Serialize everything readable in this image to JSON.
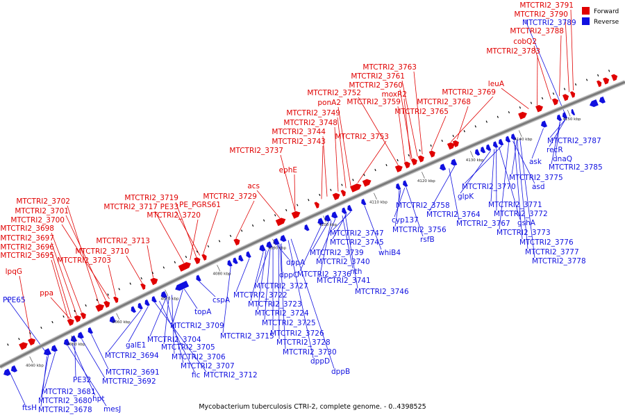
{
  "caption": "Mycobacterium tuberculosis CTRI-2, complete genome. - 0..4398525",
  "legend": {
    "forward": "Forward",
    "reverse": "Reverse"
  },
  "colors": {
    "forward": "#e00000",
    "reverse": "#1010e0",
    "backbone": "#7a7a7a"
  },
  "ticks": [
    "4040 kbp",
    "4050 kbp",
    "4060 kbp",
    "4070 kbp",
    "4080 kbp",
    "4090 kbp",
    "4100 kbp",
    "4110 kbp",
    "4120 kbp",
    "4130 kbp",
    "4140 kbp",
    "4150 kbp"
  ],
  "forward_labels": [
    "MTCTRI2_3791",
    "MTCTRI2_3790",
    "MTCTRI2_3788",
    "cobQ2",
    "MTCTRI2_3783",
    "leuA",
    "MTCTRI2_3763",
    "MTCTRI2_3761",
    "MTCTRI2_3760",
    "moxR2",
    "MTCTRI2_3752",
    "MTCTRI2_3759",
    "MTCTRI2_3769",
    "ponA2",
    "MTCTRI2_3768",
    "MTCTRI2_3765",
    "MTCTRI2_3749",
    "MTCTRI2_3748",
    "MTCTRI2_3744",
    "MTCTRI2_3753",
    "MTCTRI2_3743",
    "MTCTRI2_3737",
    "ephE",
    "acs",
    "MTCTRI2_3729",
    "MTCTRI2_3719",
    "MTCTRI2_3717",
    "PE33",
    "PE_PGRS61",
    "MTCTRI2_3720",
    "MTCTRI2_3702",
    "MTCTRI2_3701",
    "MTCTRI2_3700",
    "MTCTRI2_3698",
    "MTCTRI2_3713",
    "MTCTRI2_3697",
    "MTCTRI2_3696",
    "MTCTRI2_3710",
    "MTCTRI2_3695",
    "MTCTRI2_3703",
    "lpqG",
    "ppa"
  ],
  "reverse_labels": [
    "MTCTRI2_3789",
    "MTCTRI2_3787",
    "recR",
    "MTCTRI2_3785",
    "dnaQ",
    "ask",
    "MTCTRI2_3775",
    "asd",
    "MTCTRI2_3770",
    "glpK",
    "MTCTRI2_3771",
    "MTCTRI2_3772",
    "gshA",
    "MTCTRI2_3764",
    "MTCTRI2_3767",
    "MTCTRI2_3773",
    "MTCTRI2_3776",
    "MTCTRI2_3777",
    "MTCTRI2_3778",
    "MTCTRI2_3758",
    "cyp137",
    "MTCTRI2_3756",
    "rsfB",
    "MTCTRI2_3747",
    "MTCTRI2_3745",
    "whiB4",
    "MTCTRI2_3739",
    "MTCTRI2_3740",
    "nth",
    "MTCTRI2_3741",
    "MTCTRI2_3746",
    "dppA",
    "dppC",
    "MTCTRI2_3736",
    "MTCTRI2_3727",
    "MTCTRI2_3722",
    "MTCTRI2_3723",
    "MTCTRI2_3724",
    "MTCTRI2_3725",
    "MTCTRI2_3726",
    "MTCTRI2_3728",
    "MTCTRI2_3730",
    "dppD",
    "dppB",
    "cspA",
    "topA",
    "MTCTRI2_3709",
    "MTCTRI2_3715",
    "MTCTRI2_3704",
    "MTCTRI2_3705",
    "MTCTRI2_3706",
    "MTCTRI2_3707",
    "fic",
    "MTCTRI2_3712",
    "galE1",
    "MTCTRI2_3694",
    "MTCTRI2_3691",
    "MTCTRI2_3692",
    "PE32",
    "hpt",
    "mesJ",
    "MTCTRI2_3681",
    "MTCTRI2_3680",
    "MTCTRI2_3678",
    "ftsH",
    "PPE65"
  ]
}
